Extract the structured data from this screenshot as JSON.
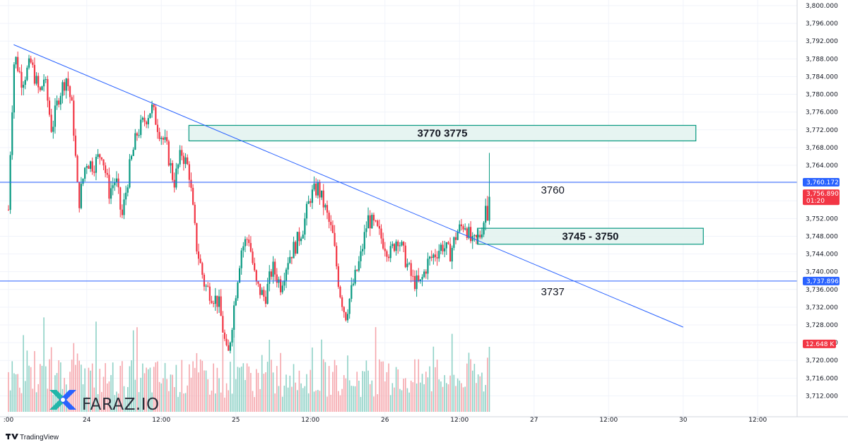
{
  "chart_data": {
    "type": "candlestick",
    "title": "",
    "price_axis": {
      "ylim": [
        3710,
        3800
      ],
      "ticks": [
        "3,800.000",
        "3,796.000",
        "3,792.000",
        "3,788.000",
        "3,784.000",
        "3,780.000",
        "3,776.000",
        "3,772.000",
        "3,768.000",
        "3,764.000",
        "3,760.000",
        "3,756.000",
        "3,752.000",
        "3,748.000",
        "3,744.000",
        "3,740.000",
        "3,736.000",
        "3,732.000",
        "3,728.000",
        "3,724.000",
        "3,720.000",
        "3,716.000",
        "3,712.000"
      ]
    },
    "time_axis": {
      "labels": [
        ":00",
        "24",
        "12:00",
        "25",
        "12:00",
        "26",
        "12:00",
        "27",
        "12:00",
        "30",
        "12:00"
      ],
      "label_times": [
        0,
        10.5,
        20.5,
        30.5,
        40.5,
        50.5,
        60.5,
        70.5,
        80.5,
        90.5,
        100.5
      ],
      "xlim": [
        0,
        108
      ],
      "unit": "hours since the first visible label"
    },
    "last_price": {
      "price": 3756.89,
      "label": "3,756.890",
      "countdown": "01:20",
      "color": "#f23645"
    },
    "volume_tag": {
      "label": "12.648 K",
      "color": "#f23645"
    },
    "horizontal_lines": [
      {
        "price": 3760.172,
        "label": "3,760.172",
        "note": "3760",
        "color": "#2962ff"
      },
      {
        "price": 3737.896,
        "label": "3,737.896",
        "note": "3737",
        "color": "#2962ff"
      }
    ],
    "zones": [
      {
        "top": 3773.0,
        "bottom": 3769.5,
        "t_start": 24.2,
        "t_end": 92.2,
        "label": "3770 3775",
        "border": "#089981",
        "fill": "#e3f3f0"
      },
      {
        "top": 3749.8,
        "bottom": 3746.2,
        "t_start": 62.9,
        "t_end": 93.2,
        "label": "3745 - 3750",
        "border": "#089981",
        "fill": "#e3f3f0"
      }
    ],
    "trendline": {
      "t1": 0.7,
      "p1": 3791.2,
      "t2": 90.5,
      "p2": 3727.5,
      "color": "#2962ff"
    },
    "candle_interval_hours": 0.25,
    "candle_waypoints": [
      [
        0.0,
        3754
      ],
      [
        0.3,
        3770
      ],
      [
        0.8,
        3789
      ],
      [
        1.8,
        3783
      ],
      [
        3.0,
        3787
      ],
      [
        4.2,
        3780
      ],
      [
        4.8,
        3784
      ],
      [
        5.8,
        3772
      ],
      [
        6.8,
        3780
      ],
      [
        7.8,
        3784
      ],
      [
        8.6,
        3776
      ],
      [
        9.4,
        3755
      ],
      [
        10.4,
        3765
      ],
      [
        11.4,
        3764
      ],
      [
        12.5,
        3767
      ],
      [
        13.5,
        3758
      ],
      [
        14.4,
        3761
      ],
      [
        15.2,
        3752
      ],
      [
        16.2,
        3763
      ],
      [
        17.2,
        3771
      ],
      [
        18.2,
        3774
      ],
      [
        19.2,
        3777
      ],
      [
        20.2,
        3772
      ],
      [
        21.2,
        3768
      ],
      [
        22.2,
        3760
      ],
      [
        23.2,
        3767
      ],
      [
        24.2,
        3763
      ],
      [
        25.2,
        3746
      ],
      [
        26.3,
        3737
      ],
      [
        27.2,
        3735
      ],
      [
        28.2,
        3733
      ],
      [
        29.4,
        3720
      ],
      [
        30.3,
        3733
      ],
      [
        31.2,
        3745
      ],
      [
        32.2,
        3748
      ],
      [
        33.2,
        3737
      ],
      [
        34.4,
        3734
      ],
      [
        35.4,
        3741
      ],
      [
        36.5,
        3737
      ],
      [
        37.5,
        3743
      ],
      [
        38.5,
        3746
      ],
      [
        39.5,
        3750
      ],
      [
        40.5,
        3757
      ],
      [
        41.5,
        3759
      ],
      [
        42.5,
        3754
      ],
      [
        43.5,
        3748
      ],
      [
        44.4,
        3736
      ],
      [
        45.2,
        3730
      ],
      [
        46.2,
        3737
      ],
      [
        47.2,
        3743
      ],
      [
        48.2,
        3752
      ],
      [
        49.2,
        3750
      ],
      [
        50.2,
        3747
      ],
      [
        51.2,
        3744
      ],
      [
        52.2,
        3748
      ],
      [
        53.2,
        3743
      ],
      [
        54.2,
        3738
      ],
      [
        55.2,
        3737
      ],
      [
        56.2,
        3742
      ],
      [
        57.2,
        3744
      ],
      [
        58.2,
        3746
      ],
      [
        59.2,
        3744
      ],
      [
        60.2,
        3749
      ],
      [
        61.2,
        3751
      ],
      [
        62.2,
        3746
      ],
      [
        63.2,
        3748
      ],
      [
        63.8,
        3752
      ],
      [
        64.3,
        3759
      ],
      [
        64.6,
        3757
      ]
    ],
    "candle_colors": {
      "up": "#089981",
      "down": "#f23645"
    },
    "volume_colors": {
      "up": "#8ed1c6",
      "down": "#f5a6ac"
    }
  },
  "watermark": {
    "brand": "FARAZ.IO",
    "colors": {
      "teal": "#22b6a9",
      "blue": "#2962ff"
    }
  },
  "attribution": {
    "text": "TradingView"
  }
}
